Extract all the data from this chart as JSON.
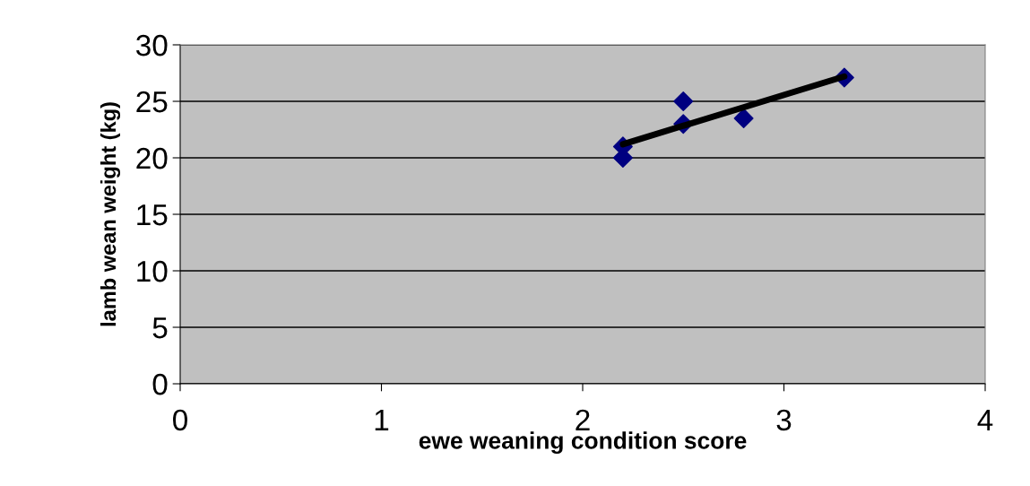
{
  "chart_data": {
    "type": "scatter",
    "xlabel": "ewe weaning condition score",
    "ylabel": "lamb wean weight (kg)",
    "xlim": [
      0,
      4
    ],
    "xticks": [
      0,
      1,
      2,
      3,
      4
    ],
    "ylim": [
      0,
      30
    ],
    "yticks": [
      0,
      5,
      10,
      15,
      20,
      25,
      30
    ],
    "grid": "y",
    "series": [
      {
        "marker": "diamond",
        "color": "#000080",
        "x": [
          2.2,
          2.2,
          2.5,
          2.5,
          2.8,
          3.3
        ],
        "values": [
          21,
          20,
          25,
          23,
          23.5,
          27.1
        ]
      },
      {
        "type": "line",
        "color": "#000000",
        "x": [
          2.2,
          3.3
        ],
        "values": [
          21.2,
          27.2
        ],
        "line_style": "solid"
      }
    ]
  }
}
